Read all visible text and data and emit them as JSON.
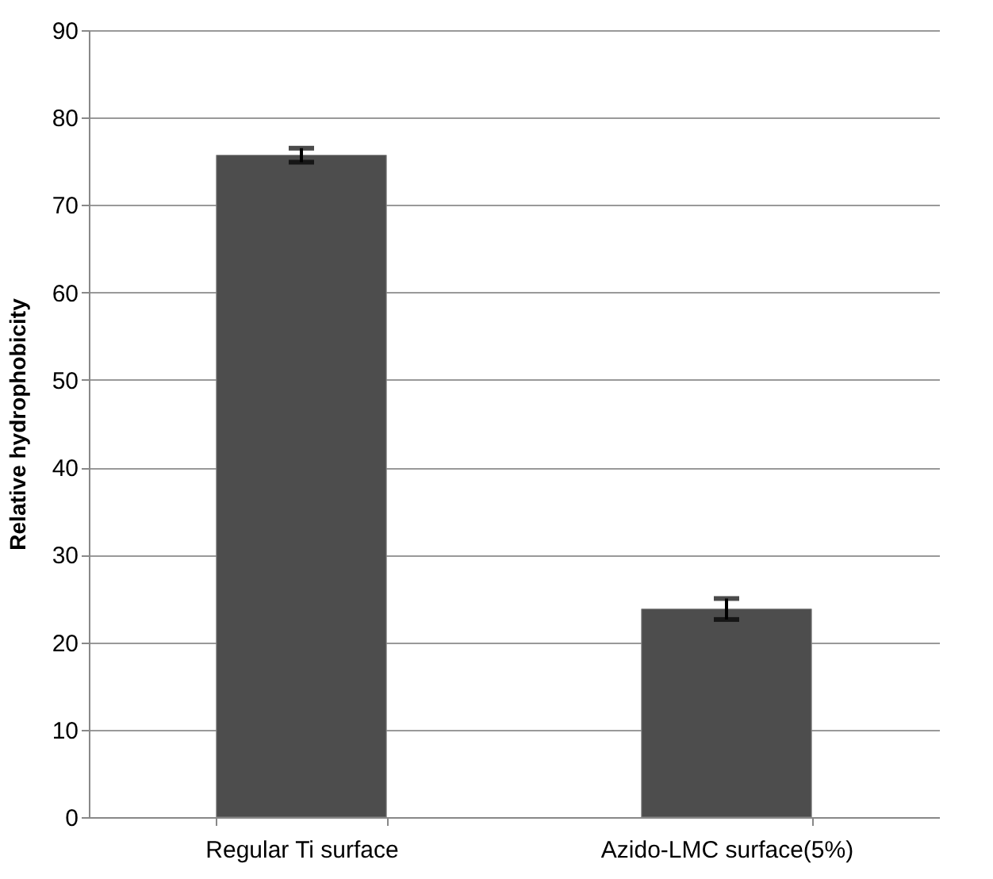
{
  "chart_data": {
    "type": "bar",
    "ylabel": "Relative hydrophobicity",
    "categories": [
      "Regular Ti surface",
      "Azido-LMC surface(5%)"
    ],
    "values": [
      75.7,
      23.8
    ],
    "errors": [
      0.8,
      1.2
    ],
    "color": "#4d4d4d",
    "ylim": [
      0,
      90
    ],
    "yticks": [
      0,
      10,
      20,
      30,
      40,
      50,
      60,
      70,
      80,
      90
    ],
    "grid": "y"
  }
}
